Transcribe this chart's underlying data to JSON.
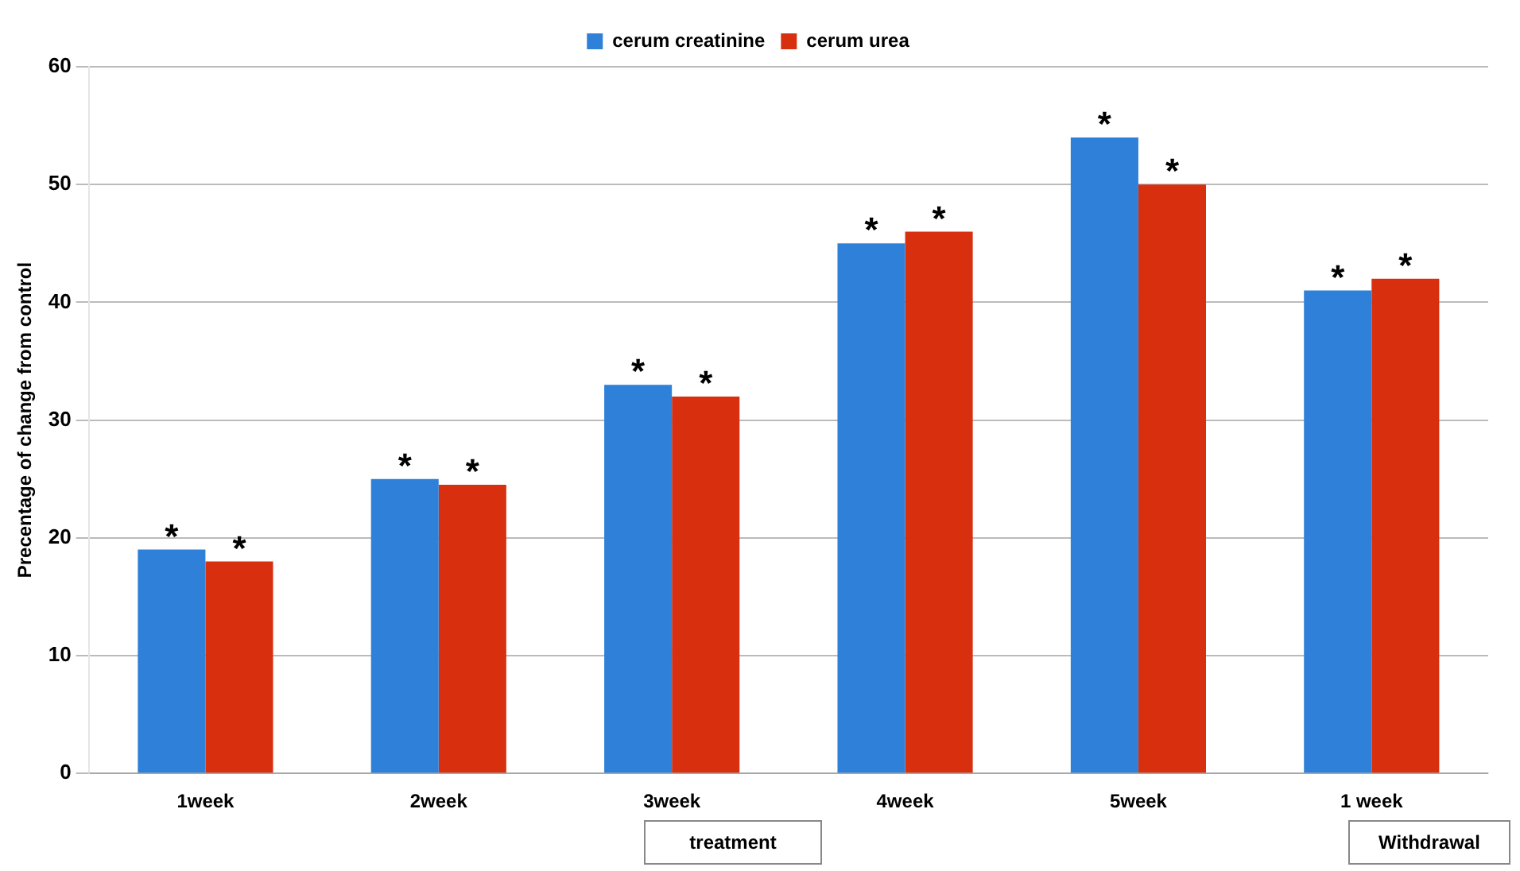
{
  "chart_data": {
    "type": "bar",
    "ylabel": "Precentage of change from control",
    "categories": [
      "1week",
      "2week",
      "3week",
      "4week",
      "5week",
      "1 week"
    ],
    "series": [
      {
        "name": "cerum creatinine",
        "color": "#2f80d8",
        "values": [
          19,
          25,
          33,
          45,
          54,
          41
        ],
        "value_labels": [
          "*",
          "*",
          "*",
          "*",
          "*",
          "*"
        ]
      },
      {
        "name": "cerum urea",
        "color": "#d8300f",
        "values": [
          18,
          24.5,
          32,
          46,
          50,
          42
        ],
        "value_labels": [
          "*",
          "*",
          "*",
          "*",
          "*",
          "*"
        ]
      }
    ],
    "ylim": [
      0,
      60
    ],
    "yticks": [
      0,
      10,
      20,
      30,
      40,
      50,
      60
    ],
    "grid": "y",
    "legend": "top",
    "annotations": [
      "treatment",
      "Withdrawal"
    ]
  }
}
